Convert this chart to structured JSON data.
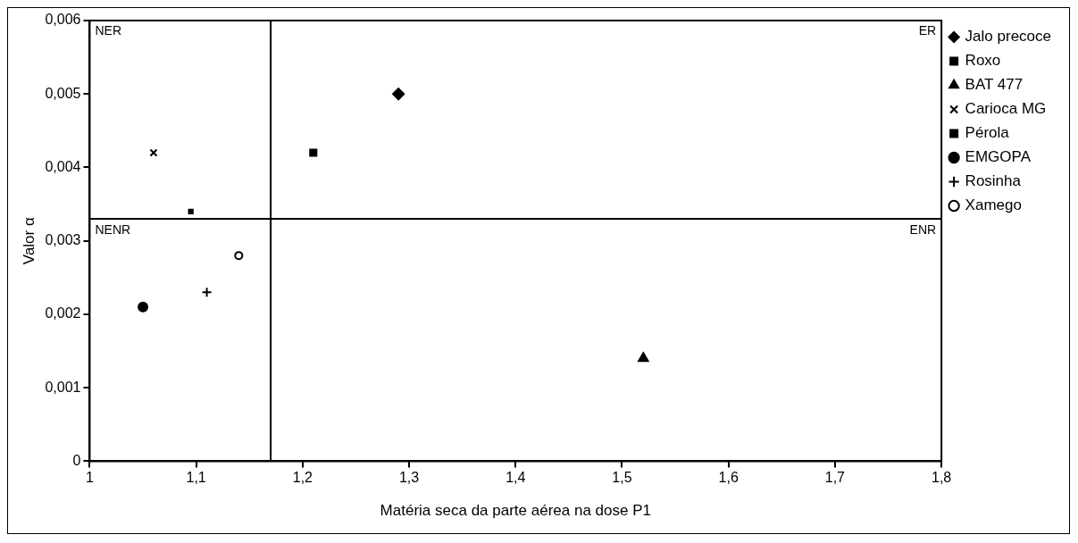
{
  "chart_data": {
    "type": "scatter",
    "xlabel": "Matéria seca da parte aérea na dose P1",
    "ylabel": "Valor α",
    "xlim": [
      1,
      1.8
    ],
    "xticks": [
      1,
      {
        "value": 1.1,
        "label": "1,1"
      },
      {
        "value": 1.2,
        "label": "1,2"
      },
      {
        "value": 1.3,
        "label": "1,3"
      },
      {
        "value": 1.4,
        "label": "1,4"
      },
      {
        "value": 1.5,
        "label": "1,5"
      },
      {
        "value": 1.6,
        "label": "1,6"
      },
      {
        "value": 1.7,
        "label": "1,7"
      },
      {
        "value": 1.8,
        "label": "1,8"
      }
    ],
    "ylim": [
      0,
      0.006
    ],
    "yticks": [
      0,
      {
        "value": 0.001,
        "label": "0,001"
      },
      {
        "value": 0.002,
        "label": "0,002"
      },
      {
        "value": 0.003,
        "label": "0,003"
      },
      {
        "value": 0.004,
        "label": "0,004"
      },
      {
        "value": 0.005,
        "label": "0,005"
      },
      {
        "value": 0.006,
        "label": "0,006"
      }
    ],
    "grid": false,
    "legend": "right",
    "ref_lines": [
      {
        "axis": "x",
        "value": 1.17,
        "color": "#000000"
      },
      {
        "axis": "y",
        "value": 0.0033,
        "color": "#000000"
      }
    ],
    "annotations": [
      "NER",
      "ER",
      "NENR",
      "ENR"
    ],
    "series": [
      {
        "name": "Jalo precoce",
        "color": "#000000",
        "marker": "diamond",
        "x": [
          1.29
        ],
        "values": [
          0.005
        ]
      },
      {
        "name": "Roxo",
        "color": "#000000",
        "marker": "square",
        "x": [
          1.21
        ],
        "values": [
          0.0042
        ]
      },
      {
        "name": "BAT 477",
        "color": "#000000",
        "marker": "triangle",
        "x": [
          1.52
        ],
        "values": [
          0.0014
        ]
      },
      {
        "name": "Carioca MG",
        "color": "#000000",
        "marker": "x",
        "x": [
          1.06
        ],
        "values": [
          0.0042
        ]
      },
      {
        "name": "Pérola",
        "color": "#000000",
        "marker": "square",
        "x": [
          1.095
        ],
        "values": [
          0.0034
        ]
      },
      {
        "name": "EMGOPA",
        "color": "#000000",
        "marker": "circle",
        "x": [
          1.05
        ],
        "values": [
          0.0021
        ]
      },
      {
        "name": "Rosinha",
        "color": "#000000",
        "marker": "cross",
        "x": [
          1.11
        ],
        "values": [
          0.0023
        ]
      },
      {
        "name": "Xamego",
        "color": "#000000",
        "marker": "open-circle",
        "x": [
          1.14
        ],
        "values": [
          0.0028
        ]
      }
    ]
  }
}
